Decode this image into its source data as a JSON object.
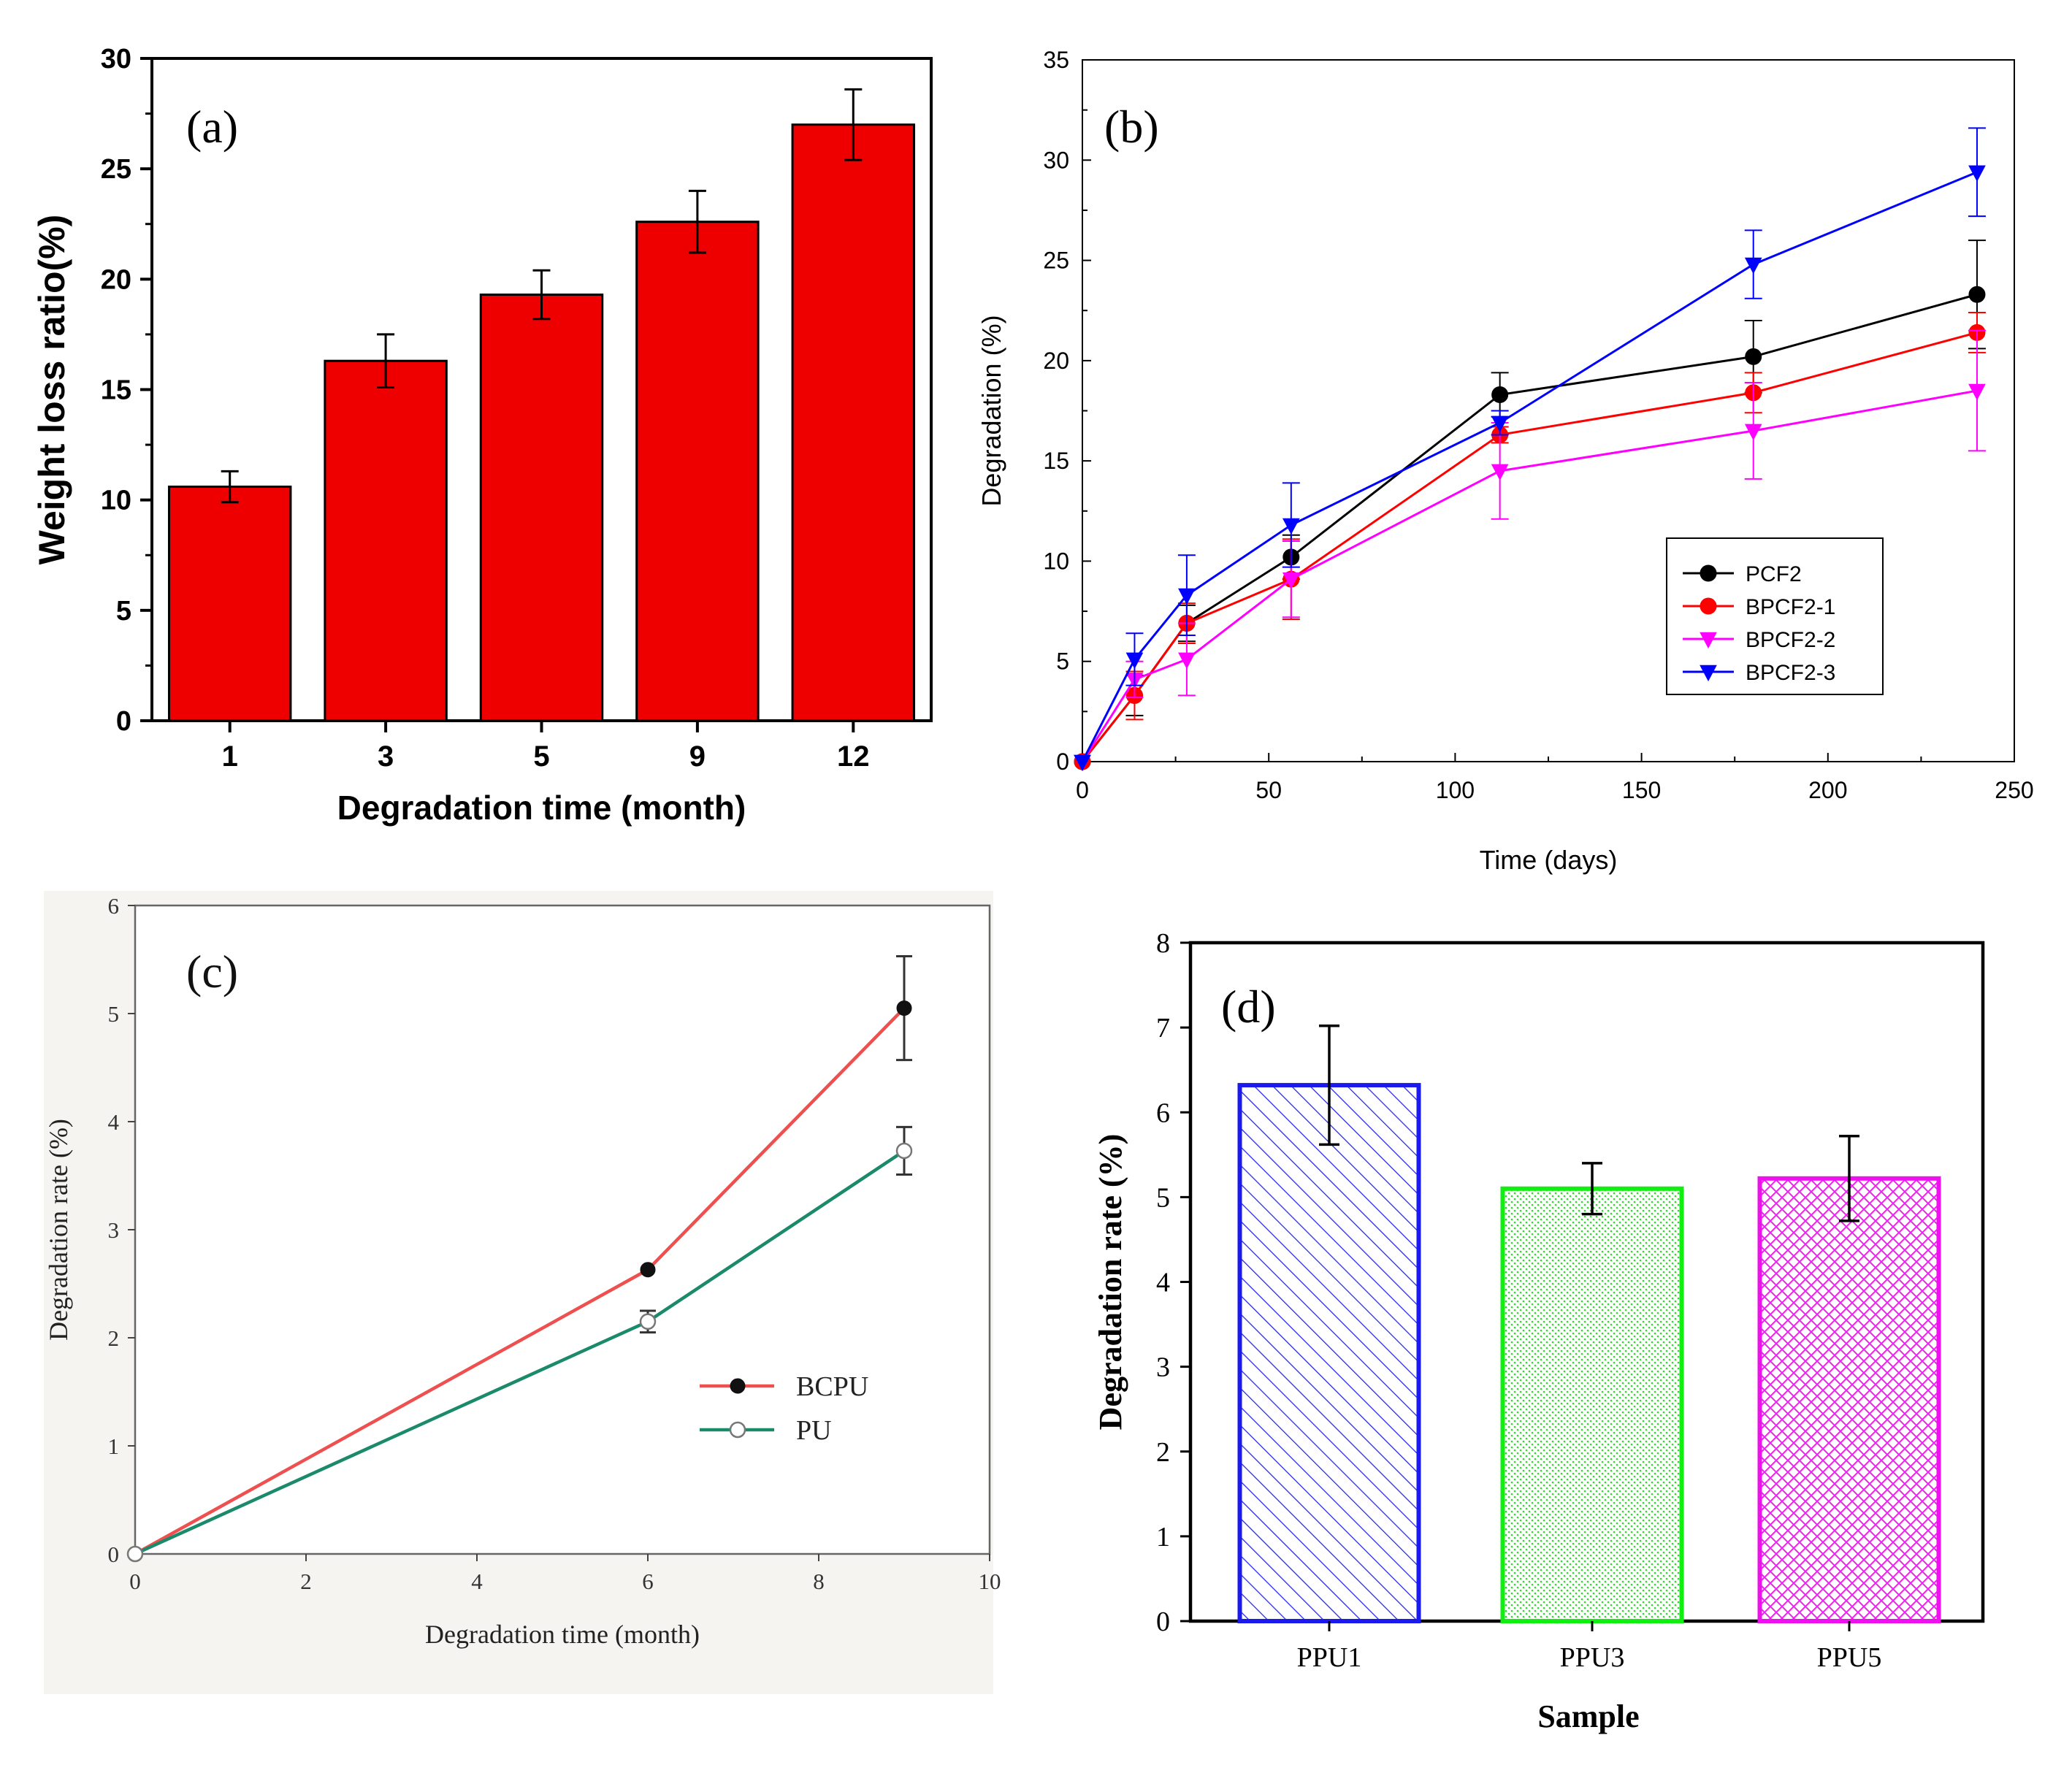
{
  "chart_data": [
    {
      "panel": "a",
      "panel_label": "(a)",
      "type": "bar",
      "title": "",
      "xlabel": "Degradation time (month)",
      "ylabel": "Weight loss ratio(%)",
      "ylim": [
        0,
        30
      ],
      "yticks": [
        0,
        5,
        10,
        15,
        20,
        25,
        30
      ],
      "categories": [
        "1",
        "3",
        "5",
        "9",
        "12"
      ],
      "values": [
        10.6,
        16.3,
        19.3,
        22.6,
        27.0
      ],
      "errors": [
        0.7,
        1.2,
        1.1,
        1.4,
        1.6
      ],
      "color": "#ee0000"
    },
    {
      "panel": "b",
      "panel_label": "(b)",
      "type": "line",
      "title": "",
      "xlabel": "Time (days)",
      "ylabel": "Degradation (%)",
      "xlim": [
        0,
        250
      ],
      "ylim": [
        0,
        35
      ],
      "xticks": [
        0,
        50,
        100,
        150,
        200,
        250
      ],
      "yticks": [
        0,
        5,
        10,
        15,
        20,
        25,
        30,
        35
      ],
      "x": [
        0,
        14,
        28,
        56,
        112,
        180,
        240
      ],
      "legend_position": "center-right",
      "series": [
        {
          "name": "PCF2",
          "color": "#000000",
          "marker": "circle",
          "values": [
            0,
            3.3,
            6.9,
            10.2,
            18.3,
            20.2,
            23.3
          ],
          "errors": [
            0,
            1.0,
            0.9,
            1.1,
            1.1,
            1.8,
            2.7
          ]
        },
        {
          "name": "BPCF2-1",
          "color": "#ff0000",
          "marker": "circle",
          "values": [
            0,
            3.3,
            6.9,
            9.1,
            16.3,
            18.4,
            21.4
          ],
          "errors": [
            0,
            1.2,
            1.0,
            2.0,
            0.4,
            1.0,
            1.0
          ]
        },
        {
          "name": "BPCF2-2",
          "color": "#ff00ff",
          "marker": "triangle-down",
          "values": [
            0,
            4.1,
            5.1,
            9.1,
            14.5,
            16.5,
            18.5
          ],
          "errors": [
            0,
            0.9,
            1.8,
            1.9,
            2.4,
            2.4,
            3.0
          ]
        },
        {
          "name": "BPCF2-3",
          "color": "#0000ff",
          "marker": "triangle-down",
          "values": [
            0,
            5.1,
            8.3,
            11.8,
            16.9,
            24.8,
            29.4
          ],
          "errors": [
            0,
            1.3,
            2.0,
            2.1,
            0.6,
            1.7,
            2.2
          ]
        }
      ]
    },
    {
      "panel": "c",
      "panel_label": "(c)",
      "type": "line",
      "title": "",
      "xlabel": "Degradation time (month)",
      "ylabel": "Degradation rate (%)",
      "xlim": [
        0,
        10
      ],
      "ylim": [
        0,
        6
      ],
      "xticks": [
        0,
        2,
        4,
        6,
        8,
        10
      ],
      "yticks": [
        0,
        1,
        2,
        3,
        4,
        5,
        6
      ],
      "x": [
        0,
        6,
        9
      ],
      "legend_position": "center-right",
      "series": [
        {
          "name": "BCPU",
          "color": "#ee5050",
          "marker": "filled-circle",
          "values": [
            0,
            2.63,
            5.05
          ],
          "errors": [
            0,
            0,
            0.48
          ]
        },
        {
          "name": "PU",
          "color": "#1a8a6a",
          "marker": "open-circle",
          "values": [
            0,
            2.15,
            3.73
          ],
          "errors": [
            0,
            0.1,
            0.22
          ]
        }
      ]
    },
    {
      "panel": "d",
      "panel_label": "(d)",
      "type": "bar",
      "title": "",
      "xlabel": "Sample",
      "ylabel": "Degradation rate (%)",
      "ylim": [
        0,
        8
      ],
      "yticks": [
        0,
        1,
        2,
        3,
        4,
        5,
        6,
        7,
        8
      ],
      "categories": [
        "PPU1",
        "PPU3",
        "PPU5"
      ],
      "values": [
        6.32,
        5.1,
        5.22
      ],
      "errors": [
        0.7,
        0.3,
        0.5
      ],
      "colors": [
        "#1a1aee",
        "#11ee11",
        "#ee11ee"
      ],
      "patterns": [
        "diagonal",
        "dots",
        "crosshatch"
      ]
    }
  ]
}
